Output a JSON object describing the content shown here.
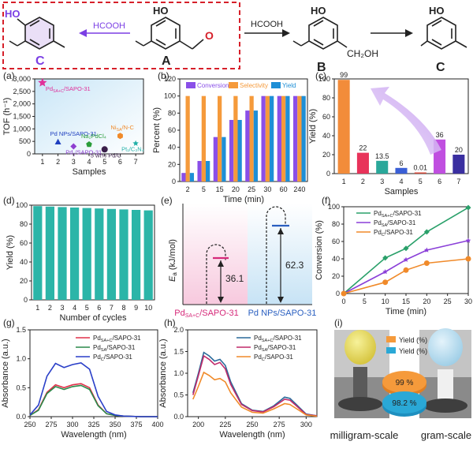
{
  "scheme": {
    "reagent": "HCOOH",
    "labels": [
      "C",
      "A",
      "B",
      "C"
    ],
    "groups": {
      "oh": "HO",
      "aldehyde": "O",
      "ch2oh": "CH₂OH"
    }
  },
  "colors": {
    "red": "#d6202a",
    "purple": "#7b3fe4",
    "orange": "#f59a3b",
    "teal": "#1aa39a",
    "blue": "#2b6cb0"
  },
  "chart_data": [
    {
      "panel": "(a)",
      "type": "scatter",
      "xlabel": "Samples",
      "ylabel": "TOF (h⁻¹)",
      "ylim": [
        0,
        3000
      ],
      "yticks": [
        0,
        500,
        1000,
        1500,
        2000,
        2500,
        3000
      ],
      "ytick_labels": [
        "0",
        "500",
        "1,000",
        "1,500",
        "2,000",
        "2,500",
        "3,000"
      ],
      "xticks": [
        1,
        2,
        3,
        4,
        5,
        6,
        7
      ],
      "points": [
        {
          "x": 1,
          "y": 2850,
          "label": "Pd_SA+C/SAPO-31",
          "color": "#e0309a",
          "marker": "star"
        },
        {
          "x": 2,
          "y": 480,
          "label": "Pd NPs/SAPO-31",
          "color": "#1f3fbf",
          "marker": "triangle"
        },
        {
          "x": 3,
          "y": 300,
          "label": "Pd_1/SAPO-31",
          "color": "#8e3fd0",
          "marker": "diamond"
        },
        {
          "x": 4,
          "y": 380,
          "label": "Na₂PdCl₄",
          "color": "#2a9d3a",
          "marker": "pentagon"
        },
        {
          "x": 5,
          "y": 180,
          "label": "5 wt% Pd/C",
          "color": "#3a1f4a",
          "marker": "circle"
        },
        {
          "x": 6,
          "y": 720,
          "label": "Ni_SA/N-C",
          "color": "#f08a2a",
          "marker": "hexagon"
        },
        {
          "x": 7,
          "y": 420,
          "label": "Pt₁/C₃N₄",
          "color": "#22b0a8",
          "marker": "asterisk"
        }
      ]
    },
    {
      "panel": "(b)",
      "type": "bar",
      "xlabel": "Time (min)",
      "ylabel": "Percent (%)",
      "ylim": [
        0,
        120
      ],
      "yticks": [
        0,
        20,
        40,
        60,
        80,
        100,
        120
      ],
      "categories": [
        "2",
        "5",
        "15",
        "20",
        "25",
        "30",
        "60",
        "240"
      ],
      "series": [
        {
          "name": "Conversion",
          "color": "#8a4fe8",
          "values": [
            10,
            24,
            52,
            72,
            83,
            100,
            100,
            100
          ]
        },
        {
          "name": "Selectivity",
          "color": "#f59a3b",
          "values": [
            100,
            100,
            100,
            100,
            100,
            100,
            100,
            100
          ]
        },
        {
          "name": "Yield",
          "color": "#1e8fd6",
          "values": [
            10,
            24,
            52,
            72,
            83,
            100,
            100,
            100
          ]
        }
      ]
    },
    {
      "panel": "(c)",
      "type": "bar",
      "xlabel": "Samples",
      "ylabel": "Yield (%)",
      "ylim": [
        0,
        100
      ],
      "yticks": [
        0,
        20,
        40,
        60,
        80,
        100
      ],
      "categories": [
        "1",
        "2",
        "3",
        "4",
        "5",
        "6",
        "7"
      ],
      "values": [
        99,
        22,
        13.5,
        6,
        0.01,
        36,
        20
      ],
      "data_labels": [
        "99",
        "22",
        "13.5",
        "6",
        "0.01",
        "36",
        "20"
      ],
      "colors": [
        "#f28c3a",
        "#e8335a",
        "#2aa89a",
        "#3a5fd6",
        "#d64a3a",
        "#c04fe0",
        "#3a2fa0"
      ]
    },
    {
      "panel": "(d)",
      "type": "bar",
      "xlabel": "Number of cycles",
      "ylabel": "Yield (%)",
      "ylim": [
        0,
        100
      ],
      "yticks": [
        0,
        20,
        40,
        60,
        80,
        100
      ],
      "categories": [
        "1",
        "2",
        "3",
        "4",
        "5",
        "6",
        "7",
        "8",
        "9",
        "10"
      ],
      "values": [
        99,
        98.5,
        98,
        97.5,
        97,
        96.5,
        96,
        95.5,
        95,
        94.5
      ],
      "color": "#2bb5a8"
    },
    {
      "panel": "(e)",
      "type": "diagram",
      "ylabel": "E_a (kJ/mol)",
      "items": [
        {
          "label": "Pd_SA+C/SAPO-31",
          "value": "36.1",
          "color": "#d62a7a"
        },
        {
          "label": "Pd NPs/SAPO-31",
          "value": "62.3",
          "color": "#2a5fc0"
        }
      ]
    },
    {
      "panel": "(f)",
      "type": "line",
      "xlabel": "Time (min)",
      "ylabel": "Conversion (%)",
      "xlim": [
        0,
        30
      ],
      "ylim": [
        0,
        100
      ],
      "xticks": [
        0,
        5,
        10,
        15,
        20,
        25,
        30
      ],
      "yticks": [
        0,
        20,
        40,
        60,
        80,
        100
      ],
      "x": [
        0,
        10,
        15,
        20,
        30
      ],
      "series": [
        {
          "name": "Pd_SA+C/SAPO-31",
          "color": "#2aa06a",
          "marker": "diamond",
          "values": [
            0,
            41,
            52,
            71,
            99
          ]
        },
        {
          "name": "Pd_SA/SAPO-31",
          "color": "#8a3fd8",
          "marker": "star",
          "values": [
            0,
            25,
            39,
            50,
            61
          ]
        },
        {
          "name": "Pd_C/SAPO-31",
          "color": "#f08a2a",
          "marker": "circle",
          "values": [
            0,
            13,
            27,
            35,
            40
          ]
        }
      ]
    },
    {
      "panel": "(g)",
      "type": "line",
      "xlabel": "Wavelength (nm)",
      "ylabel": "Absorbance (a.u.)",
      "xlim": [
        250,
        400
      ],
      "ylim": [
        0,
        1.5
      ],
      "xticks": [
        250,
        275,
        300,
        325,
        350,
        375,
        400
      ],
      "yticks": [
        0,
        0.5,
        1.0,
        1.5
      ],
      "ytick_labels": [
        "0.0",
        "0.5",
        "1.0",
        "1.5"
      ],
      "x": [
        250,
        260,
        270,
        280,
        290,
        300,
        310,
        320,
        330,
        340,
        350,
        360,
        380,
        400
      ],
      "series": [
        {
          "name": "Pd_SA+C/SAPO-31",
          "color": "#e0304a",
          "values": [
            0.02,
            0.12,
            0.42,
            0.55,
            0.5,
            0.55,
            0.57,
            0.5,
            0.2,
            0.05,
            0.02,
            0.01,
            0.0,
            0.0
          ]
        },
        {
          "name": "Pd_SA/SAPO-31",
          "color": "#2a8a4a",
          "values": [
            0.02,
            0.11,
            0.4,
            0.52,
            0.47,
            0.52,
            0.54,
            0.47,
            0.19,
            0.05,
            0.02,
            0.01,
            0.0,
            0.0
          ]
        },
        {
          "name": "Pd_C/SAPO-31",
          "color": "#2a3fc8",
          "values": [
            0.03,
            0.2,
            0.7,
            0.92,
            0.85,
            0.9,
            0.93,
            0.82,
            0.35,
            0.09,
            0.03,
            0.01,
            0.0,
            0.0
          ]
        }
      ]
    },
    {
      "panel": "(h)",
      "type": "line",
      "xlabel": "Wavelength (nm)",
      "ylabel": "Absorbance (a.u.)",
      "xlim": [
        190,
        310
      ],
      "ylim": [
        0,
        2.0
      ],
      "xticks": [
        200,
        225,
        250,
        275,
        300
      ],
      "yticks": [
        0,
        0.5,
        1.0,
        1.5,
        2.0
      ],
      "ytick_labels": [
        "0.0",
        "0.5",
        "1.0",
        "1.5",
        "2.0"
      ],
      "x": [
        195,
        200,
        205,
        210,
        215,
        220,
        225,
        230,
        240,
        250,
        260,
        270,
        280,
        285,
        290,
        300,
        310
      ],
      "series": [
        {
          "name": "Pd_SA+C/SAPO-31",
          "color": "#2a6a9a",
          "values": [
            0.55,
            1.0,
            1.48,
            1.4,
            1.28,
            1.32,
            1.18,
            0.8,
            0.3,
            0.15,
            0.12,
            0.25,
            0.45,
            0.42,
            0.3,
            0.06,
            0.02
          ]
        },
        {
          "name": "Pd_SA/SAPO-31",
          "color": "#c02a6a",
          "values": [
            0.5,
            0.95,
            1.4,
            1.32,
            1.2,
            1.25,
            1.1,
            0.74,
            0.28,
            0.14,
            0.11,
            0.23,
            0.4,
            0.38,
            0.27,
            0.05,
            0.02
          ]
        },
        {
          "name": "Pd_C/SAPO-31",
          "color": "#f08a2a",
          "values": [
            0.4,
            0.7,
            1.02,
            0.95,
            0.85,
            0.88,
            0.8,
            0.55,
            0.22,
            0.1,
            0.08,
            0.18,
            0.3,
            0.28,
            0.2,
            0.04,
            0.01
          ]
        }
      ]
    },
    {
      "panel": "(i)",
      "type": "pie",
      "legend": [
        {
          "name": "Yield (%)",
          "color": "#f59a3b"
        },
        {
          "name": "Yield (%)",
          "color": "#2aa8d6"
        }
      ],
      "values": [
        "99 %",
        "98.2 %"
      ],
      "captions": [
        "milligram-scale",
        "gram-scale"
      ]
    }
  ]
}
